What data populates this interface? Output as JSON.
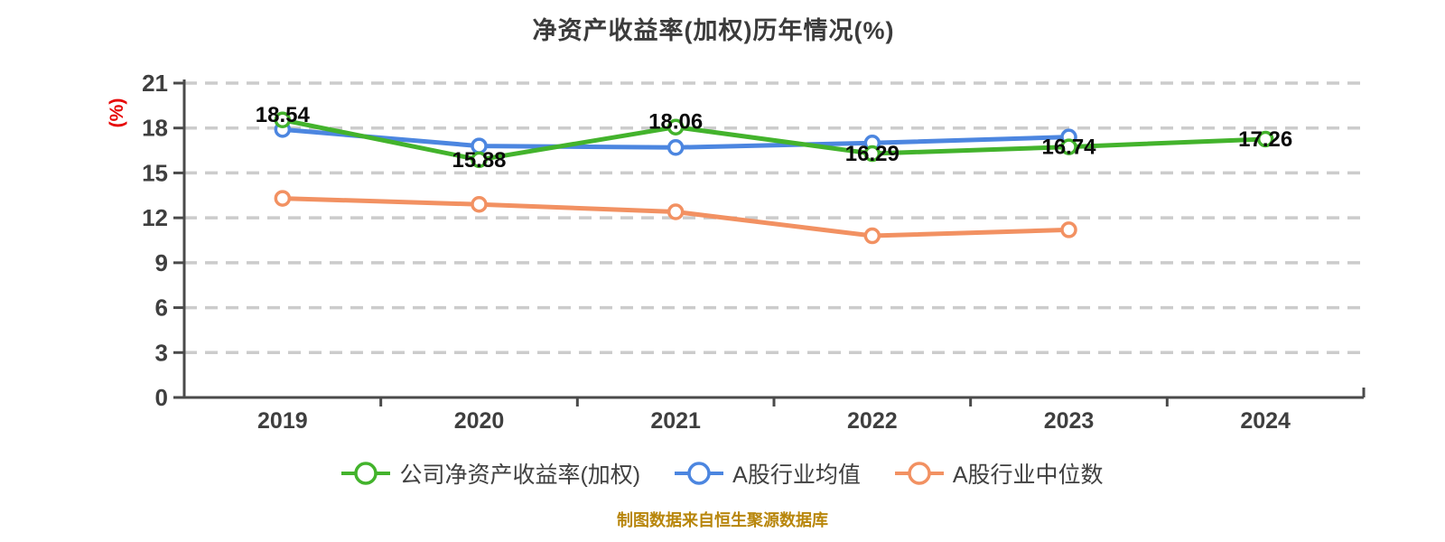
{
  "footer": "制图数据来自恒生聚源数据库",
  "chart_data": {
    "type": "line",
    "title": "净资产收益率(加权)历年情况(%)",
    "ylabel": "(%)",
    "xlabel": "",
    "categories": [
      "2019",
      "2020",
      "2021",
      "2022",
      "2023",
      "2024"
    ],
    "ylim": [
      0,
      21
    ],
    "yticks": [
      0,
      3,
      6,
      9,
      12,
      15,
      18,
      21
    ],
    "grid": "horizontal-dashed",
    "legend_position": "bottom",
    "series": [
      {
        "name": "公司净资产收益率(加权)",
        "color": "#43b32c",
        "labels_shown": true,
        "values": [
          18.54,
          15.88,
          18.06,
          16.29,
          16.74,
          17.26
        ]
      },
      {
        "name": "A股行业均值",
        "color": "#4c86e0",
        "labels_shown": false,
        "values": [
          17.9,
          16.8,
          16.7,
          17.0,
          17.4,
          null
        ]
      },
      {
        "name": "A股行业中位数",
        "color": "#f29162",
        "labels_shown": false,
        "values": [
          13.3,
          12.9,
          12.4,
          10.8,
          11.2,
          null
        ]
      }
    ]
  },
  "colors": {
    "title": "#3b3b3b",
    "axis": "#4a4a4a",
    "gridline": "#cccccc",
    "tick_label": "#3f3f3f",
    "value_label": "#0a0a0a",
    "y_unit_label": "#e60000",
    "footer": "#b8860b",
    "background": "#ffffff"
  }
}
